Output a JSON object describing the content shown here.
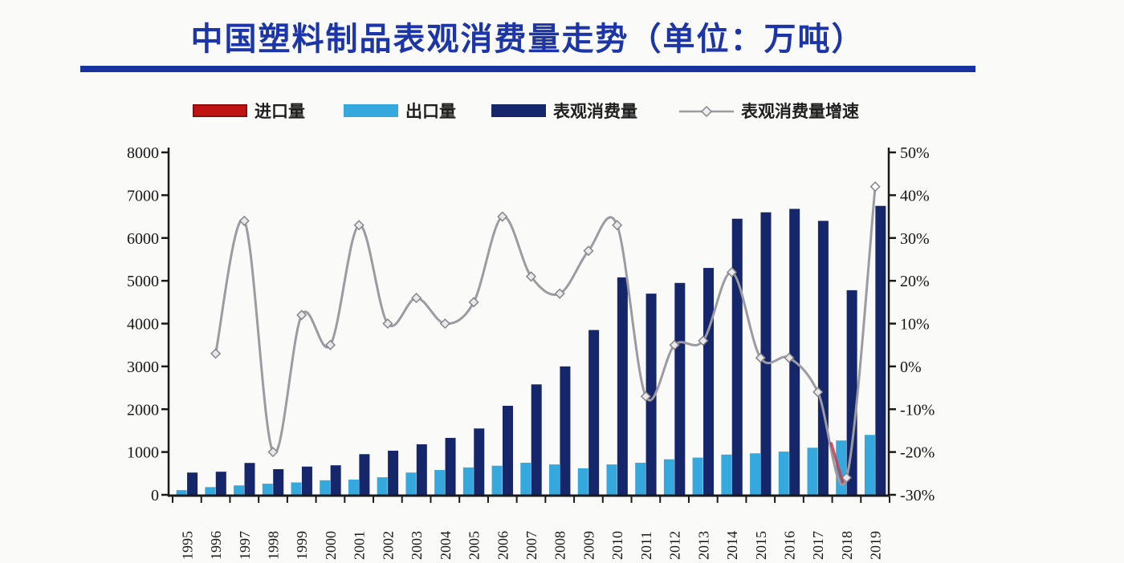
{
  "title": "中国塑料制品表观消费量走势（单位：万吨）",
  "legend": [
    {
      "label": "进口量",
      "type": "bar",
      "color": "#c01414",
      "border": "#8c0d0d"
    },
    {
      "label": "出口量",
      "type": "bar",
      "color": "#35a8dd"
    },
    {
      "label": "表观消费量",
      "type": "bar",
      "color": "#15266b"
    },
    {
      "label": "表观消费量增速",
      "type": "line",
      "color": "#9b9ba1"
    }
  ],
  "chart_data": {
    "type": "bar+line combo",
    "categories": [
      "1995",
      "1996",
      "1997",
      "1998",
      "1999",
      "2000",
      "2001",
      "2002",
      "2003",
      "2004",
      "2005",
      "2006",
      "2007",
      "2008",
      "2009",
      "2010",
      "2011",
      "2012",
      "2013",
      "2014",
      "2015",
      "2016",
      "2017",
      "2018",
      "2019"
    ],
    "series": [
      {
        "name": "进口量",
        "type": "bar",
        "color": "#c01414",
        "values": null,
        "note": "legend entry present but bars not visible in plot"
      },
      {
        "name": "出口量",
        "type": "bar",
        "color": "#35a8dd",
        "values": [
          110,
          180,
          220,
          260,
          290,
          340,
          355,
          410,
          520,
          580,
          640,
          680,
          750,
          710,
          620,
          710,
          750,
          830,
          870,
          940,
          970,
          1010,
          1100,
          1270,
          1400
        ]
      },
      {
        "name": "表观消费量",
        "type": "bar",
        "color": "#15266b",
        "values": [
          520,
          540,
          745,
          600,
          660,
          690,
          950,
          1030,
          1180,
          1330,
          1550,
          2080,
          2580,
          3000,
          3850,
          5080,
          4700,
          4950,
          5300,
          6450,
          6600,
          6680,
          6400,
          4780,
          6750
        ]
      },
      {
        "name": "表观消费量增速",
        "type": "line",
        "axis": "right",
        "unit": "%",
        "color": "#9b9ba1",
        "values": [
          null,
          3,
          34,
          -20,
          12,
          5,
          33,
          10,
          16,
          10,
          15,
          35,
          21,
          17,
          27,
          33,
          -7,
          5,
          6,
          22,
          2,
          2,
          -6,
          -26,
          42
        ]
      }
    ],
    "left_axis": {
      "min": 0,
      "max": 8000,
      "tick_step": 1000,
      "tick_labels": [
        "8000",
        "7000",
        "6000",
        "5000",
        "4000",
        "3000",
        "2000",
        "1000",
        "0"
      ]
    },
    "right_axis": {
      "min": -30,
      "max": 50,
      "tick_step": 10,
      "tick_labels": [
        "50%",
        "40%",
        "30%",
        "20%",
        "10%",
        "0%",
        "-10%",
        "-20%",
        "-30%"
      ]
    },
    "grid": "none",
    "legend_position": "top",
    "annotations": [
      {
        "type": "red-down-stroke",
        "near_year": "2018",
        "color": "#c43a50"
      }
    ]
  },
  "colors": {
    "title": "#1c35a8",
    "underline": "#16339e",
    "axis": "#1a1a1a",
    "background": "#fafaf9",
    "tick_text": "#161616"
  }
}
